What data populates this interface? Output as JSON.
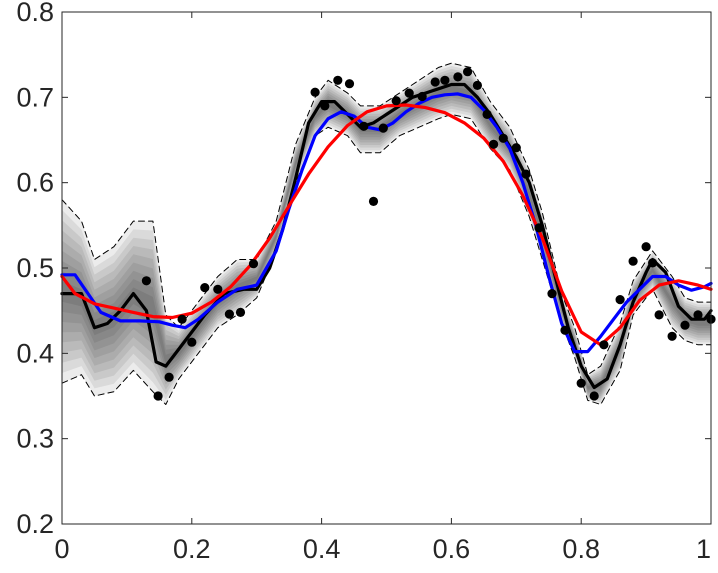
{
  "chart_data": {
    "type": "line",
    "title": "",
    "xlabel": "",
    "ylabel": "",
    "xlim": [
      0,
      1
    ],
    "ylim": [
      0.2,
      0.8
    ],
    "x_ticks": [
      {
        "value": 0,
        "label": "0"
      },
      {
        "value": 0.2,
        "label": "0.2"
      },
      {
        "value": 0.4,
        "label": "0.4"
      },
      {
        "value": 0.6,
        "label": "0.6"
      },
      {
        "value": 0.8,
        "label": "0.8"
      },
      {
        "value": 1,
        "label": "1"
      }
    ],
    "y_ticks": [
      {
        "value": 0.2,
        "label": "0.2"
      },
      {
        "value": 0.3,
        "label": "0.3"
      },
      {
        "value": 0.4,
        "label": "0.4"
      },
      {
        "value": 0.5,
        "label": "0.5"
      },
      {
        "value": 0.6,
        "label": "0.6"
      },
      {
        "value": 0.7,
        "label": "0.7"
      },
      {
        "value": 0.8,
        "label": "0.8"
      }
    ],
    "grid": false,
    "legend": "none",
    "band": {
      "color": "#000000",
      "x": [
        0,
        0.03,
        0.05,
        0.08,
        0.11,
        0.14,
        0.16,
        0.18,
        0.21,
        0.24,
        0.27,
        0.3,
        0.33,
        0.36,
        0.39,
        0.41,
        0.44,
        0.46,
        0.49,
        0.52,
        0.55,
        0.58,
        0.6,
        0.63,
        0.66,
        0.69,
        0.72,
        0.74,
        0.77,
        0.79,
        0.81,
        0.83,
        0.86,
        0.88,
        0.91,
        0.94,
        0.96,
        0.98,
        1
      ],
      "lower": [
        0.365,
        0.375,
        0.35,
        0.355,
        0.38,
        0.355,
        0.34,
        0.37,
        0.4,
        0.43,
        0.445,
        0.465,
        0.52,
        0.6,
        0.655,
        0.665,
        0.655,
        0.635,
        0.635,
        0.655,
        0.665,
        0.675,
        0.68,
        0.675,
        0.64,
        0.615,
        0.56,
        0.51,
        0.435,
        0.395,
        0.345,
        0.34,
        0.38,
        0.445,
        0.475,
        0.43,
        0.415,
        0.41,
        0.41
      ],
      "upper": [
        0.58,
        0.555,
        0.51,
        0.525,
        0.555,
        0.555,
        0.445,
        0.43,
        0.46,
        0.49,
        0.51,
        0.51,
        0.555,
        0.645,
        0.7,
        0.72,
        0.705,
        0.69,
        0.69,
        0.705,
        0.72,
        0.735,
        0.74,
        0.735,
        0.695,
        0.665,
        0.615,
        0.565,
        0.47,
        0.43,
        0.375,
        0.385,
        0.435,
        0.485,
        0.52,
        0.49,
        0.465,
        0.46,
        0.46
      ]
    },
    "series": [
      {
        "color": "#000000",
        "style": "solid",
        "width": 3.2,
        "x": [
          0,
          0.015,
          0.03,
          0.05,
          0.07,
          0.09,
          0.11,
          0.13,
          0.145,
          0.16,
          0.18,
          0.2,
          0.22,
          0.25,
          0.28,
          0.3,
          0.32,
          0.34,
          0.36,
          0.38,
          0.4,
          0.42,
          0.44,
          0.46,
          0.48,
          0.5,
          0.52,
          0.54,
          0.56,
          0.58,
          0.6,
          0.62,
          0.64,
          0.66,
          0.68,
          0.7,
          0.72,
          0.74,
          0.76,
          0.78,
          0.8,
          0.82,
          0.84,
          0.86,
          0.88,
          0.9,
          0.91,
          0.93,
          0.95,
          0.97,
          0.99,
          1
        ],
        "y": [
          0.47,
          0.47,
          0.47,
          0.43,
          0.435,
          0.45,
          0.47,
          0.45,
          0.39,
          0.385,
          0.405,
          0.425,
          0.445,
          0.47,
          0.475,
          0.475,
          0.5,
          0.545,
          0.605,
          0.67,
          0.695,
          0.695,
          0.68,
          0.665,
          0.67,
          0.68,
          0.69,
          0.7,
          0.705,
          0.71,
          0.715,
          0.715,
          0.7,
          0.68,
          0.655,
          0.63,
          0.6,
          0.55,
          0.49,
          0.43,
          0.385,
          0.36,
          0.37,
          0.41,
          0.46,
          0.495,
          0.51,
          0.495,
          0.455,
          0.44,
          0.44,
          0.45
        ]
      },
      {
        "color": "#000000",
        "style": "dashed",
        "width": 1,
        "x": [
          0,
          0.03,
          0.05,
          0.08,
          0.11,
          0.14,
          0.16,
          0.18,
          0.21,
          0.24,
          0.27,
          0.3,
          0.33,
          0.36,
          0.39,
          0.41,
          0.44,
          0.46,
          0.49,
          0.52,
          0.55,
          0.58,
          0.6,
          0.63,
          0.66,
          0.69,
          0.72,
          0.74,
          0.77,
          0.79,
          0.81,
          0.83,
          0.86,
          0.88,
          0.91,
          0.94,
          0.96,
          0.98,
          1
        ],
        "y": [
          0.365,
          0.375,
          0.35,
          0.355,
          0.38,
          0.355,
          0.34,
          0.37,
          0.4,
          0.43,
          0.445,
          0.465,
          0.52,
          0.6,
          0.655,
          0.665,
          0.655,
          0.635,
          0.635,
          0.655,
          0.665,
          0.675,
          0.68,
          0.675,
          0.64,
          0.615,
          0.56,
          0.51,
          0.435,
          0.395,
          0.345,
          0.34,
          0.38,
          0.445,
          0.475,
          0.43,
          0.415,
          0.41,
          0.41
        ]
      },
      {
        "color": "#000000",
        "style": "dashed",
        "width": 1,
        "x": [
          0,
          0.03,
          0.05,
          0.08,
          0.11,
          0.14,
          0.16,
          0.18,
          0.21,
          0.24,
          0.27,
          0.3,
          0.33,
          0.36,
          0.39,
          0.41,
          0.44,
          0.46,
          0.49,
          0.52,
          0.55,
          0.58,
          0.6,
          0.63,
          0.66,
          0.69,
          0.72,
          0.74,
          0.77,
          0.79,
          0.81,
          0.83,
          0.86,
          0.88,
          0.91,
          0.94,
          0.96,
          0.98,
          1
        ],
        "y": [
          0.58,
          0.555,
          0.51,
          0.525,
          0.555,
          0.555,
          0.445,
          0.43,
          0.46,
          0.49,
          0.51,
          0.51,
          0.555,
          0.645,
          0.7,
          0.72,
          0.705,
          0.69,
          0.69,
          0.705,
          0.72,
          0.735,
          0.74,
          0.735,
          0.695,
          0.665,
          0.615,
          0.565,
          0.47,
          0.43,
          0.375,
          0.385,
          0.435,
          0.485,
          0.52,
          0.49,
          0.465,
          0.46,
          0.46
        ]
      },
      {
        "color": "#0000ff",
        "style": "solid",
        "width": 3.2,
        "x": [
          0,
          0.02,
          0.04,
          0.06,
          0.09,
          0.12,
          0.15,
          0.17,
          0.19,
          0.21,
          0.24,
          0.27,
          0.3,
          0.33,
          0.35,
          0.37,
          0.39,
          0.41,
          0.43,
          0.45,
          0.47,
          0.49,
          0.51,
          0.53,
          0.55,
          0.57,
          0.59,
          0.61,
          0.63,
          0.65,
          0.67,
          0.69,
          0.71,
          0.73,
          0.75,
          0.77,
          0.79,
          0.81,
          0.83,
          0.85,
          0.87,
          0.89,
          0.91,
          0.93,
          0.95,
          0.97,
          0.99,
          1
        ],
        "y": [
          0.492,
          0.492,
          0.47,
          0.448,
          0.438,
          0.438,
          0.437,
          0.433,
          0.43,
          0.44,
          0.46,
          0.475,
          0.48,
          0.52,
          0.57,
          0.615,
          0.655,
          0.675,
          0.683,
          0.678,
          0.665,
          0.662,
          0.67,
          0.683,
          0.693,
          0.7,
          0.703,
          0.704,
          0.7,
          0.685,
          0.665,
          0.64,
          0.6,
          0.55,
          0.49,
          0.435,
          0.402,
          0.402,
          0.42,
          0.44,
          0.46,
          0.475,
          0.49,
          0.49,
          0.48,
          0.474,
          0.478,
          0.482
        ]
      },
      {
        "color": "#ff0000",
        "style": "solid",
        "width": 3.2,
        "x": [
          0,
          0.02,
          0.05,
          0.08,
          0.11,
          0.14,
          0.17,
          0.2,
          0.23,
          0.26,
          0.29,
          0.32,
          0.35,
          0.38,
          0.41,
          0.44,
          0.47,
          0.5,
          0.53,
          0.56,
          0.59,
          0.62,
          0.65,
          0.68,
          0.71,
          0.74,
          0.77,
          0.8,
          0.83,
          0.86,
          0.89,
          0.92,
          0.95,
          0.98,
          1
        ],
        "y": [
          0.49,
          0.47,
          0.458,
          0.453,
          0.448,
          0.443,
          0.442,
          0.447,
          0.46,
          0.478,
          0.503,
          0.535,
          0.573,
          0.61,
          0.642,
          0.667,
          0.683,
          0.69,
          0.691,
          0.688,
          0.682,
          0.67,
          0.652,
          0.625,
          0.585,
          0.535,
          0.473,
          0.425,
          0.41,
          0.43,
          0.462,
          0.48,
          0.485,
          0.48,
          0.475
        ]
      }
    ],
    "points": {
      "color": "#000000",
      "x": [
        0.13,
        0.148,
        0.165,
        0.185,
        0.2,
        0.22,
        0.24,
        0.258,
        0.275,
        0.295,
        0.39,
        0.405,
        0.425,
        0.443,
        0.465,
        0.48,
        0.495,
        0.515,
        0.535,
        0.555,
        0.575,
        0.59,
        0.61,
        0.625,
        0.64,
        0.655,
        0.665,
        0.68,
        0.7,
        0.715,
        0.735,
        0.755,
        0.775,
        0.8,
        0.82,
        0.835,
        0.86,
        0.88,
        0.9,
        0.91,
        0.92,
        0.94,
        0.96,
        0.98,
        1
      ],
      "y": [
        0.485,
        0.35,
        0.372,
        0.44,
        0.413,
        0.477,
        0.475,
        0.446,
        0.448,
        0.505,
        0.706,
        0.69,
        0.72,
        0.716,
        0.666,
        0.578,
        0.664,
        0.696,
        0.705,
        0.701,
        0.718,
        0.72,
        0.724,
        0.73,
        0.714,
        0.68,
        0.645,
        0.652,
        0.641,
        0.61,
        0.547,
        0.47,
        0.427,
        0.365,
        0.35,
        0.41,
        0.463,
        0.508,
        0.525,
        0.506,
        0.445,
        0.42,
        0.433,
        0.445,
        0.44
      ]
    }
  }
}
